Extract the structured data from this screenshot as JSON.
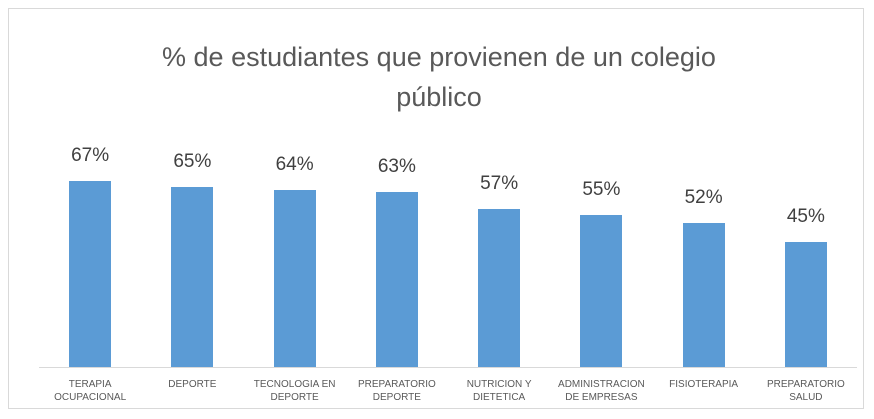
{
  "chart_data": {
    "type": "bar",
    "title": "% de estudiantes que provienen de un colegio público",
    "categories": [
      "TERAPIA OCUPACIONAL",
      "DEPORTE",
      "TECNOLOGIA EN DEPORTE",
      "PREPARATORIO DEPORTE",
      "NUTRICION Y DIETETICA",
      "ADMINISTRACION DE EMPRESAS",
      "FISIOTERAPIA",
      "PREPARATORIO SALUD"
    ],
    "values": [
      67,
      65,
      64,
      63,
      57,
      55,
      52,
      45
    ],
    "value_labels": [
      "67%",
      "65%",
      "64%",
      "63%",
      "57%",
      "55%",
      "52%",
      "45%"
    ],
    "color": "#5b9bd5"
  }
}
